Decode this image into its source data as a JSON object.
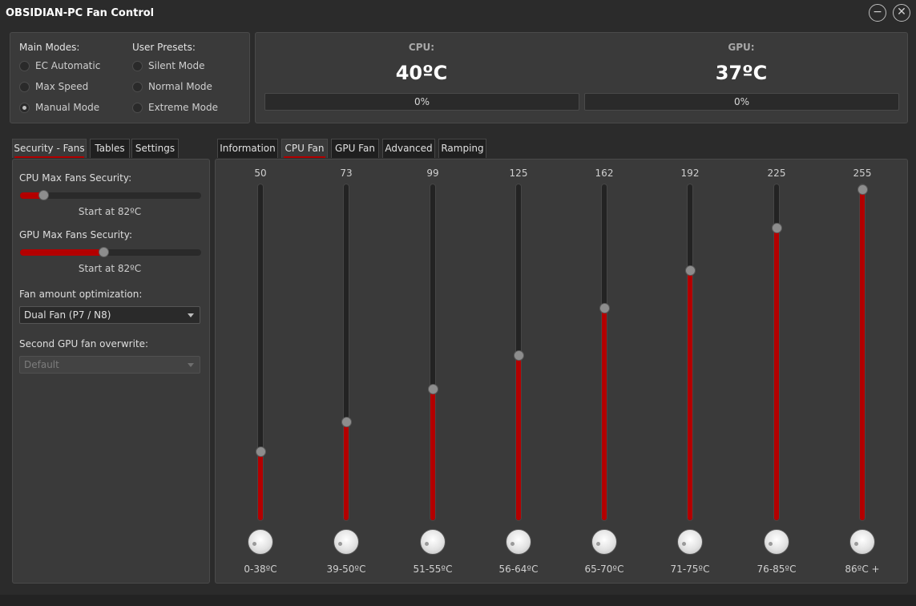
{
  "window": {
    "title": "OBSIDIAN-PC Fan Control",
    "minimize_glyph": "−",
    "close_glyph": "✕"
  },
  "main_modes": {
    "heading": "Main Modes:",
    "options": [
      {
        "label": "EC Automatic",
        "checked": false
      },
      {
        "label": "Max Speed",
        "checked": false
      },
      {
        "label": "Manual Mode",
        "checked": true
      }
    ]
  },
  "user_presets": {
    "heading": "User Presets:",
    "options": [
      {
        "label": "Silent Mode",
        "checked": false
      },
      {
        "label": "Normal Mode",
        "checked": false
      },
      {
        "label": "Extreme Mode",
        "checked": false
      }
    ]
  },
  "cpu": {
    "label": "CPU:",
    "temp": "40ºC",
    "fan_percent_text": "0%",
    "fan_percent": 0
  },
  "gpu": {
    "label": "GPU:",
    "temp": "37ºC",
    "fan_percent_text": "0%",
    "fan_percent": 0
  },
  "left_tabs": [
    {
      "label": "Security - Fans",
      "active": true
    },
    {
      "label": "Tables",
      "active": false
    },
    {
      "label": "Settings",
      "active": false
    }
  ],
  "security": {
    "cpu_label": "CPU Max Fans Security:",
    "cpu_value_fraction": 0.13,
    "cpu_caption": "Start at 82ºC",
    "gpu_label": "GPU Max Fans Security:",
    "gpu_value_fraction": 0.46,
    "gpu_caption": "Start at 82ºC",
    "fan_opt_label": "Fan amount optimization:",
    "fan_opt_value": "Dual Fan (P7 / N8)",
    "second_gpu_label": "Second GPU fan overwrite:",
    "second_gpu_value": "Default"
  },
  "right_tabs": [
    {
      "label": "Information",
      "active": false
    },
    {
      "label": "CPU Fan",
      "active": true
    },
    {
      "label": "GPU Fan",
      "active": false
    },
    {
      "label": "Advanced",
      "active": false
    },
    {
      "label": "Ramping",
      "active": false
    }
  ],
  "fan_curve": {
    "max_value": 255,
    "points": [
      {
        "value": 50,
        "range": "0-38ºC"
      },
      {
        "value": 73,
        "range": "39-50ºC"
      },
      {
        "value": 99,
        "range": "51-55ºC"
      },
      {
        "value": 125,
        "range": "56-64ºC"
      },
      {
        "value": 162,
        "range": "65-70ºC"
      },
      {
        "value": 192,
        "range": "71-75ºC"
      },
      {
        "value": 225,
        "range": "76-85ºC"
      },
      {
        "value": 255,
        "range": "86ºC +"
      }
    ]
  },
  "colors": {
    "accent": "#b30000",
    "background": "#2b2b2b",
    "panel": "#3a3a3a"
  }
}
